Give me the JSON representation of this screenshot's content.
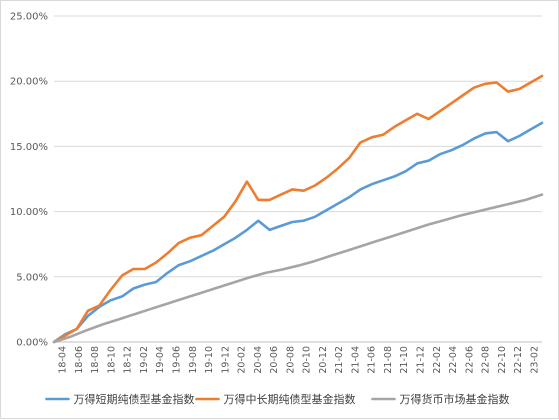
{
  "chart_data": {
    "type": "line",
    "title": "",
    "xlabel": "",
    "ylabel": "",
    "ylim": [
      0,
      25
    ],
    "yticks": [
      "0.00%",
      "5.00%",
      "10.00%",
      "15.00%",
      "20.00%",
      "25.00%"
    ],
    "x_tick_labels": [
      "18-04",
      "18-06",
      "18-08",
      "18-10",
      "18-12",
      "19-02",
      "19-04",
      "19-06",
      "19-08",
      "19-10",
      "19-12",
      "20-02",
      "20-04",
      "20-06",
      "20-08",
      "20-10",
      "20-12",
      "21-02",
      "21-04",
      "21-06",
      "21-08",
      "21-10",
      "21-12",
      "22-02",
      "22-04",
      "22-06",
      "22-08",
      "22-10",
      "22-12",
      "23-02"
    ],
    "grid": {
      "horizontal": true,
      "vertical": false
    },
    "legend_position": "bottom",
    "series": [
      {
        "name": "万得短期纯债型基金指数",
        "color": "#5b9bd5",
        "values": [
          0,
          0.6,
          1.0,
          2.0,
          2.7,
          3.2,
          3.5,
          4.1,
          4.4,
          4.6,
          5.3,
          5.9,
          6.2,
          6.6,
          7.0,
          7.5,
          8.0,
          8.6,
          9.3,
          8.6,
          8.9,
          9.2,
          9.3,
          9.6,
          10.1,
          10.6,
          11.1,
          11.7,
          12.1,
          12.4,
          12.7,
          13.1,
          13.7,
          13.9,
          14.4,
          14.7,
          15.1,
          15.6,
          16.0,
          16.1,
          15.4,
          15.8,
          16.3,
          16.8
        ]
      },
      {
        "name": "万得中长期纯债型基金指数",
        "color": "#ed7d31",
        "values": [
          0,
          0.5,
          1.0,
          2.4,
          2.8,
          4.0,
          5.1,
          5.6,
          5.6,
          6.1,
          6.8,
          7.6,
          8.0,
          8.2,
          8.9,
          9.6,
          10.8,
          12.3,
          10.9,
          10.9,
          11.3,
          11.7,
          11.6,
          12.0,
          12.6,
          13.3,
          14.1,
          15.3,
          15.7,
          15.9,
          16.5,
          17.0,
          17.5,
          17.1,
          17.7,
          18.3,
          18.9,
          19.5,
          19.8,
          19.9,
          19.2,
          19.4,
          19.9,
          20.4
        ]
      },
      {
        "name": "万得货币市场基金指数",
        "color": "#a5a5a5",
        "values": [
          0,
          0.4,
          0.9,
          1.35,
          1.75,
          2.15,
          2.55,
          2.95,
          3.35,
          3.75,
          4.15,
          4.55,
          4.95,
          5.3,
          5.55,
          5.85,
          6.2,
          6.6,
          7.0,
          7.4,
          7.8,
          8.2,
          8.6,
          9.0,
          9.35,
          9.7,
          10.0,
          10.3,
          10.6,
          10.9,
          11.3
        ]
      }
    ]
  }
}
